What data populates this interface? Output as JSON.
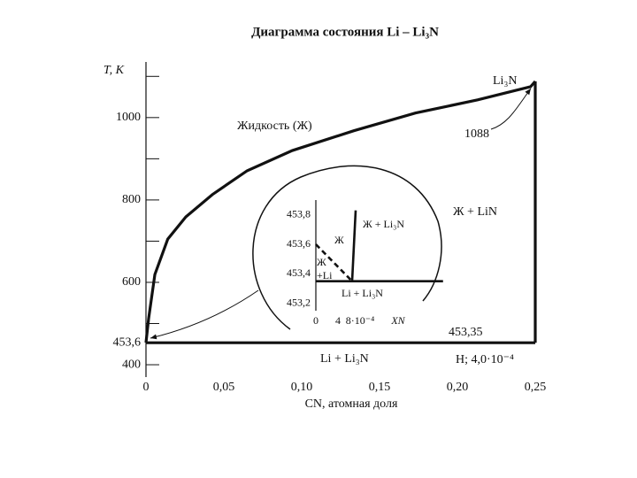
{
  "chart_data": [
    {
      "type": "line",
      "title": "Диаграмма состояния Li – Li₃N",
      "xlabel": "CN, атомная доля",
      "ylabel": "T, K",
      "xlim": [
        0,
        0.25
      ],
      "ylim": [
        370,
        1135
      ],
      "xticks": [
        0,
        {
          "value": 0.05,
          "label": "0,05"
        },
        {
          "value": 0.1,
          "label": "0,10"
        },
        {
          "value": 0.15,
          "label": "0,15"
        },
        {
          "value": 0.2,
          "label": "0,20"
        },
        {
          "value": 0.25,
          "label": "0,25"
        }
      ],
      "yticks": [
        400,
        {
          "value": 453.6,
          "label": "453,6"
        },
        600,
        800,
        1000
      ],
      "minor_yticks": [
        500,
        700,
        900,
        1100
      ],
      "series": [
        {
          "color": "#111111",
          "x": [
            0,
            0.0017,
            0.0057,
            0.014,
            0.0256,
            0.0426,
            0.065,
            0.094,
            0.1335,
            0.173,
            0.213,
            0.247,
            0.25
          ],
          "values": [
            453.6,
            512,
            619,
            705,
            759,
            813,
            871,
            920,
            968,
            1011,
            1043,
            1075,
            1088
          ]
        },
        {
          "color": "#111111",
          "x": [
            0.25,
            0.25
          ],
          "values": [
            1088,
            453.35
          ]
        },
        {
          "color": "#111111",
          "x": [
            0,
            0.25
          ],
          "values": [
            453.35,
            453.35
          ]
        }
      ],
      "annotations": [
        "Жидкость (Ж)",
        "Li₃N",
        "1088",
        "Ж + LiN",
        "453,35",
        "Li + Li₃N",
        "H; 4,0·10⁻⁴"
      ]
    },
    {
      "type": "line",
      "xlabel": "XN",
      "xlim": [
        0,
        0.0024
      ],
      "ylim": [
        453.15,
        453.9
      ],
      "xticks": [
        0,
        {
          "value": 0.0004,
          "label": "4"
        },
        {
          "value": 0.0008,
          "label": "8·10⁻⁴"
        }
      ],
      "yticks": [
        {
          "value": 453.2,
          "label": "453,2"
        },
        {
          "value": 453.4,
          "label": "453,4"
        },
        {
          "value": 453.6,
          "label": "453,6"
        },
        {
          "value": 453.8,
          "label": "453,8"
        }
      ],
      "series": [
        {
          "color": "#111111",
          "dashed": true,
          "x": [
            0,
            0.000656
          ],
          "values": [
            453.6,
            453.35
          ]
        },
        {
          "color": "#111111",
          "x": [
            0.000656,
            0.00072
          ],
          "values": [
            453.35,
            453.83
          ]
        },
        {
          "color": "#111111",
          "x": [
            0,
            0.0023
          ],
          "values": [
            453.35,
            453.35
          ]
        }
      ],
      "annotations": [
        "Ж + Li₃N",
        "Ж",
        "Ж",
        "+Li",
        "Li + Li₃N"
      ]
    }
  ]
}
